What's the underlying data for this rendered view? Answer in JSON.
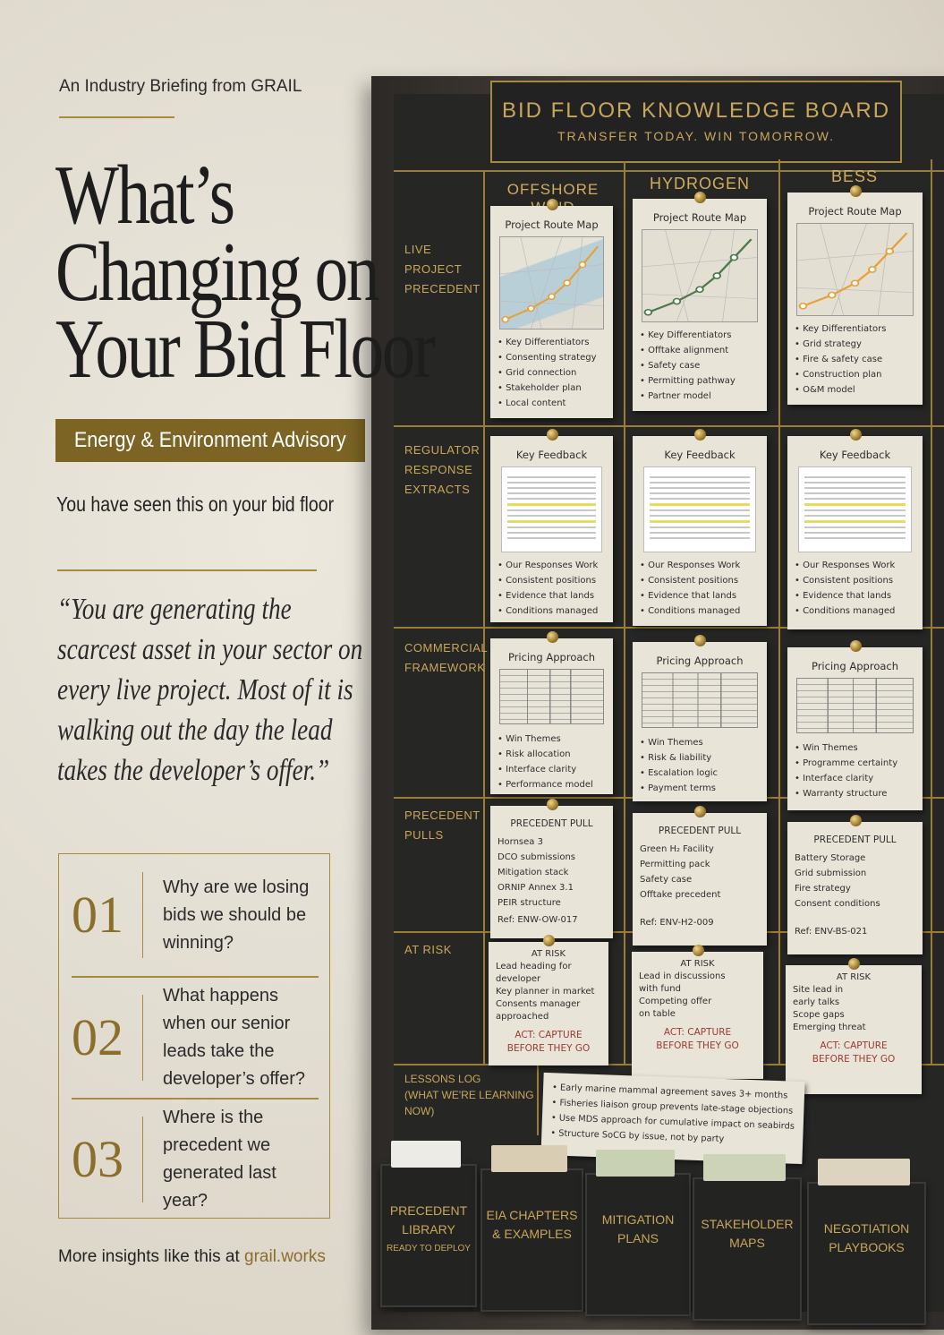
{
  "kicker": "An Industry Briefing from GRAIL",
  "headline": [
    "What’s",
    "Changing on",
    "Your Bid Floor"
  ],
  "badge": "Energy & Environment Advisory",
  "subhead": "You have seen this on your bid floor",
  "quote": "“You are generating the scarcest asset in your sector on every live project. Most of it is walking out the day the lead takes the developer’s offer.”",
  "questions": [
    {
      "num": "01",
      "text": "Why are we losing bids we should be winning?"
    },
    {
      "num": "02",
      "text": "What happens when our senior leads take the developer’s offer?"
    },
    {
      "num": "03",
      "text": "Where is the precedent we generated last year?"
    }
  ],
  "footer": {
    "text": "More insights like this at ",
    "link": "grail.works"
  },
  "colors": {
    "gold": "#a8893f",
    "badge": "#7b6424",
    "board": "#262625",
    "card": "#e9e4d8",
    "alert": "#9a3a30"
  },
  "board": {
    "title": "BID FLOOR KNOWLEDGE BOARD",
    "tagline": "TRANSFER TODAY. WIN TOMORROW.",
    "columns": [
      "OFFSHORE WIND",
      "HYDROGEN",
      "BESS"
    ],
    "rows": [
      "LIVE PROJECT\nPRECEDENT",
      "REGULATOR\nRESPONSE\nEXTRACTS",
      "COMMERCIAL\nFRAMEWORK",
      "PRECEDENT\nPULLS",
      "AT RISK",
      "LESSONS LOG\n(WHAT WE'RE LEARNING NOW)"
    ],
    "route_maps": [
      {
        "title": "Project Route Map",
        "items": [
          "Key Differentiators",
          "Consenting strategy",
          "Grid connection",
          "Stakeholder plan",
          "Local content"
        ]
      },
      {
        "title": "Project Route Map",
        "items": [
          "Key Differentiators",
          "Offtake alignment",
          "Safety case",
          "Permitting pathway",
          "Partner model"
        ]
      },
      {
        "title": "Project Route Map",
        "items": [
          "Key Differentiators",
          "Grid strategy",
          "Fire & safety case",
          "Construction plan",
          "O&M model"
        ]
      }
    ],
    "feedback": [
      {
        "title": "Key Feedback",
        "items": [
          "Our Responses Work",
          "Consistent positions",
          "Evidence that lands",
          "Conditions managed"
        ]
      },
      {
        "title": "Key Feedback",
        "items": [
          "Our Responses Work",
          "Consistent positions",
          "Evidence that lands",
          "Conditions managed"
        ]
      },
      {
        "title": "Key Feedback",
        "items": [
          "Our Responses Work",
          "Consistent positions",
          "Evidence that lands",
          "Conditions managed"
        ]
      }
    ],
    "pricing": [
      {
        "title": "Pricing Approach",
        "items": [
          "Win Themes",
          "Risk allocation",
          "Interface clarity",
          "Performance model"
        ]
      },
      {
        "title": "Pricing Approach",
        "items": [
          "Win Themes",
          "Risk & liability",
          "Escalation logic",
          "Payment terms"
        ]
      },
      {
        "title": "Pricing Approach",
        "items": [
          "Win Themes",
          "Programme certainty",
          "Interface clarity",
          "Warranty structure"
        ]
      }
    ],
    "precedent": [
      {
        "title": "PRECEDENT PULL",
        "items": [
          "Hornsea 3",
          "DCO submissions",
          "Mitigation stack",
          "ORNIP Annex 3.1",
          "PEIR structure"
        ],
        "ref": "Ref: ENW-OW-017"
      },
      {
        "title": "PRECEDENT PULL",
        "items": [
          "Green H₂ Facility",
          "Permitting pack",
          "Safety case",
          "Offtake precedent"
        ],
        "ref": "Ref: ENV-H2-009"
      },
      {
        "title": "PRECEDENT PULL",
        "items": [
          "Battery Storage",
          "Grid submission",
          "Fire strategy",
          "Consent conditions"
        ],
        "ref": "Ref: ENV-BS-021"
      }
    ],
    "at_risk": [
      {
        "title": "AT RISK",
        "items": [
          "Lead heading for",
          "developer",
          "Key planner in market",
          "Consents manager",
          "approached"
        ],
        "action": "ACT: CAPTURE\nBEFORE THEY GO"
      },
      {
        "title": "AT RISK",
        "items": [
          "Lead in discussions",
          "with fund",
          "Competing offer",
          "on table"
        ],
        "action": "ACT: CAPTURE\nBEFORE THEY GO"
      },
      {
        "title": "AT RISK",
        "items": [
          "Site lead in",
          "early talks",
          "Scope gaps",
          "Emerging threat"
        ],
        "action": "ACT: CAPTURE\nBEFORE THEY GO"
      }
    ],
    "lessons": [
      "Early marine mammal agreement saves 3+ months",
      "Fisheries liaison group prevents late-stage objections",
      "Use MDS approach for cumulative impact on seabirds",
      "Structure SoCG by issue, not by party"
    ],
    "bins": [
      {
        "label": "PRECEDENT\nLIBRARY",
        "sub": "READY TO DEPLOY"
      },
      {
        "label": "EIA CHAPTERS\n& EXAMPLES"
      },
      {
        "label": "MITIGATION\nPLANS"
      },
      {
        "label": "STAKEHOLDER\nMAPS"
      },
      {
        "label": "NEGOTIATION\nPLAYBOOKS"
      }
    ]
  }
}
